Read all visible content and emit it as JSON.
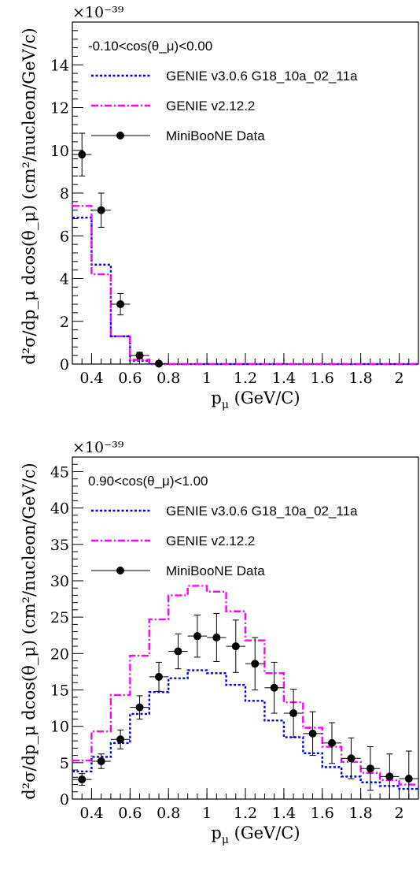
{
  "chart_data": [
    {
      "type": "line",
      "title": "",
      "xlabel": "p_μ (GeV/C)",
      "ylabel": "d²σ/dp_μ dcos(θ_μ) (cm²/nucleon/GeV/c)",
      "y_multiplier": "×10⁻³⁹",
      "xlim": [
        0.3,
        2.1
      ],
      "ylim": [
        0,
        16
      ],
      "x_ticks": [
        "0.4",
        "0.6",
        "0.8",
        "1",
        "1.2",
        "1.4",
        "1.6",
        "1.8",
        "2"
      ],
      "y_ticks": [
        "0",
        "2",
        "4",
        "6",
        "8",
        "10",
        "12",
        "14"
      ],
      "legend_title": "-0.10<cos(θ_μ)<0.00",
      "bin_edges": [
        0.3,
        0.4,
        0.5,
        0.6,
        0.7,
        0.8,
        0.9,
        1.0,
        1.1,
        1.2,
        1.3,
        1.4,
        1.5,
        1.6,
        1.7,
        1.8,
        1.9,
        2.0,
        2.1
      ],
      "series": [
        {
          "name": "GENIE v3.0.6 G18_10a_02_11a",
          "style": "dotted",
          "color": "#0000ee",
          "values": [
            6.85,
            4.65,
            1.3,
            0.15,
            0,
            0,
            0,
            0,
            0,
            0,
            0,
            0,
            0,
            0,
            0,
            0,
            0,
            0
          ]
        },
        {
          "name": "GENIE v2.12.2",
          "style": "dashdot",
          "color": "#ff00ff",
          "values": [
            7.4,
            4.2,
            1.3,
            0.2,
            0,
            0,
            0,
            0,
            0,
            0,
            0,
            0,
            0,
            0,
            0,
            0,
            0,
            0
          ]
        },
        {
          "name": "MiniBooNE Data",
          "style": "points",
          "color": "#000000",
          "points": [
            {
              "x": 0.35,
              "y": 9.8,
              "err": 1.0,
              "xerr": 0.05
            },
            {
              "x": 0.45,
              "y": 7.2,
              "err": 0.8,
              "xerr": 0.05
            },
            {
              "x": 0.55,
              "y": 2.8,
              "err": 0.5,
              "xerr": 0.05
            },
            {
              "x": 0.65,
              "y": 0.4,
              "err": 0.15,
              "xerr": 0.05
            },
            {
              "x": 0.75,
              "y": 0.02,
              "err": 0.03,
              "xerr": 0.05
            }
          ]
        }
      ]
    },
    {
      "type": "line",
      "title": "",
      "xlabel": "p_μ (GeV/C)",
      "ylabel": "d²σ/dp_μ dcos(θ_μ) (cm²/nucleon/GeV/c)",
      "y_multiplier": "×10⁻³⁹",
      "xlim": [
        0.3,
        2.1
      ],
      "ylim": [
        0,
        47
      ],
      "x_ticks": [
        "0.4",
        "0.6",
        "0.8",
        "1",
        "1.2",
        "1.4",
        "1.6",
        "1.8",
        "2"
      ],
      "y_ticks": [
        "0",
        "5",
        "10",
        "15",
        "20",
        "25",
        "30",
        "35",
        "40",
        "45"
      ],
      "legend_title": "0.90<cos(θ_μ)<1.00",
      "bin_edges": [
        0.3,
        0.4,
        0.5,
        0.6,
        0.7,
        0.8,
        0.9,
        1.0,
        1.1,
        1.2,
        1.3,
        1.4,
        1.5,
        1.6,
        1.7,
        1.8,
        1.9,
        2.0,
        2.1
      ],
      "series": [
        {
          "name": "GENIE v3.0.6 G18_10a_02_11a",
          "style": "dotted",
          "color": "#0000ee",
          "values": [
            3.8,
            5.8,
            7.7,
            11.7,
            14.7,
            16.6,
            17.7,
            17.3,
            15.7,
            13.5,
            10.8,
            8.5,
            6.3,
            4.4,
            3.1,
            2.3,
            1.8,
            1.4
          ]
        },
        {
          "name": "GENIE v2.12.2",
          "style": "dashdot",
          "color": "#ff00ff",
          "values": [
            5.3,
            9.3,
            14.3,
            19.7,
            24.7,
            28.0,
            29.3,
            28.5,
            25.8,
            21.8,
            17.3,
            13.3,
            9.8,
            7.2,
            5.1,
            3.6,
            2.6,
            2.0
          ]
        },
        {
          "name": "MiniBooNE Data",
          "style": "points",
          "color": "#000000",
          "points": [
            {
              "x": 0.35,
              "y": 2.7,
              "err": 0.8,
              "xerr": 0.05
            },
            {
              "x": 0.45,
              "y": 5.2,
              "err": 1.0,
              "xerr": 0.05
            },
            {
              "x": 0.55,
              "y": 8.2,
              "err": 1.3,
              "xerr": 0.05
            },
            {
              "x": 0.65,
              "y": 12.6,
              "err": 1.6,
              "xerr": 0.05
            },
            {
              "x": 0.75,
              "y": 16.8,
              "err": 2.0,
              "xerr": 0.05
            },
            {
              "x": 0.85,
              "y": 20.3,
              "err": 2.4,
              "xerr": 0.05
            },
            {
              "x": 0.95,
              "y": 22.4,
              "err": 2.9,
              "xerr": 0.05
            },
            {
              "x": 1.05,
              "y": 22.2,
              "err": 3.3,
              "xerr": 0.05
            },
            {
              "x": 1.15,
              "y": 21.0,
              "err": 3.6,
              "xerr": 0.05
            },
            {
              "x": 1.25,
              "y": 18.6,
              "err": 3.6,
              "xerr": 0.05
            },
            {
              "x": 1.35,
              "y": 15.3,
              "err": 3.5,
              "xerr": 0.05
            },
            {
              "x": 1.45,
              "y": 11.8,
              "err": 3.3,
              "xerr": 0.05
            },
            {
              "x": 1.55,
              "y": 9.0,
              "err": 3.0,
              "xerr": 0.05
            },
            {
              "x": 1.65,
              "y": 7.7,
              "err": 2.8,
              "xerr": 0.05
            },
            {
              "x": 1.75,
              "y": 5.6,
              "err": 2.8,
              "xerr": 0.05
            },
            {
              "x": 1.85,
              "y": 4.2,
              "err": 3.0,
              "xerr": 0.05
            },
            {
              "x": 1.95,
              "y": 3.1,
              "err": 3.1,
              "xerr": 0.05
            },
            {
              "x": 2.05,
              "y": 2.8,
              "err": 3.8,
              "xerr": 0.05
            }
          ]
        }
      ]
    }
  ]
}
